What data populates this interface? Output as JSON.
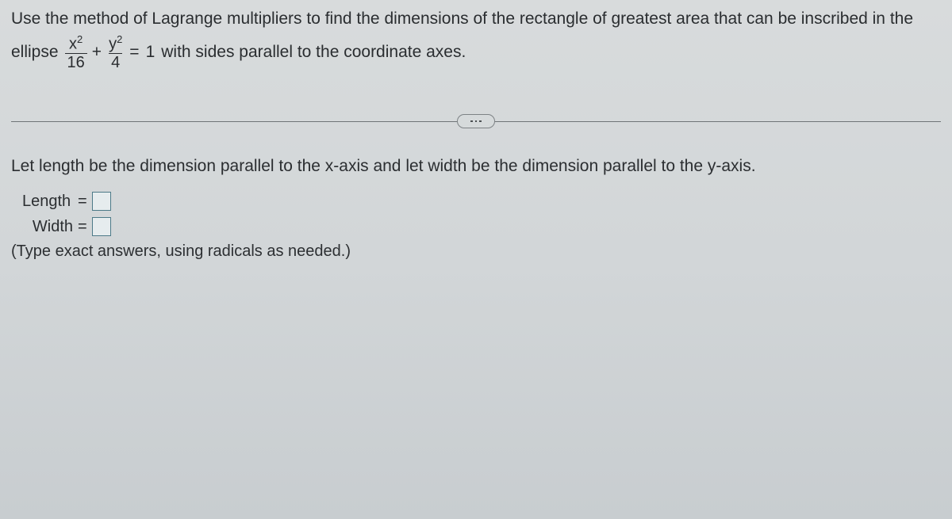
{
  "question": {
    "line1_text": "Use the method of Lagrange multipliers to find the dimensions of the rectangle of greatest area that can be inscribed in the",
    "ellipse_word": "ellipse",
    "frac1_num": "x",
    "frac1_sup": "2",
    "frac1_den": "16",
    "plus": "+",
    "frac2_num": "y",
    "frac2_sup": "2",
    "frac2_den": "4",
    "eq": "=",
    "one": "1",
    "rest_text": " with sides parallel to the coordinate axes."
  },
  "answer": {
    "instruction": "Let length be the dimension parallel to the x-axis and let width be the dimension parallel to the y-axis.",
    "length_label": "Length",
    "width_label": "Width",
    "eq_sign": "=",
    "length_value": "",
    "width_value": "",
    "hint": "(Type exact answers, using radicals as needed.)"
  },
  "style": {
    "text_color": "#2a2d30",
    "input_border": "#4d7a88",
    "divider_color": "#6f7477"
  }
}
